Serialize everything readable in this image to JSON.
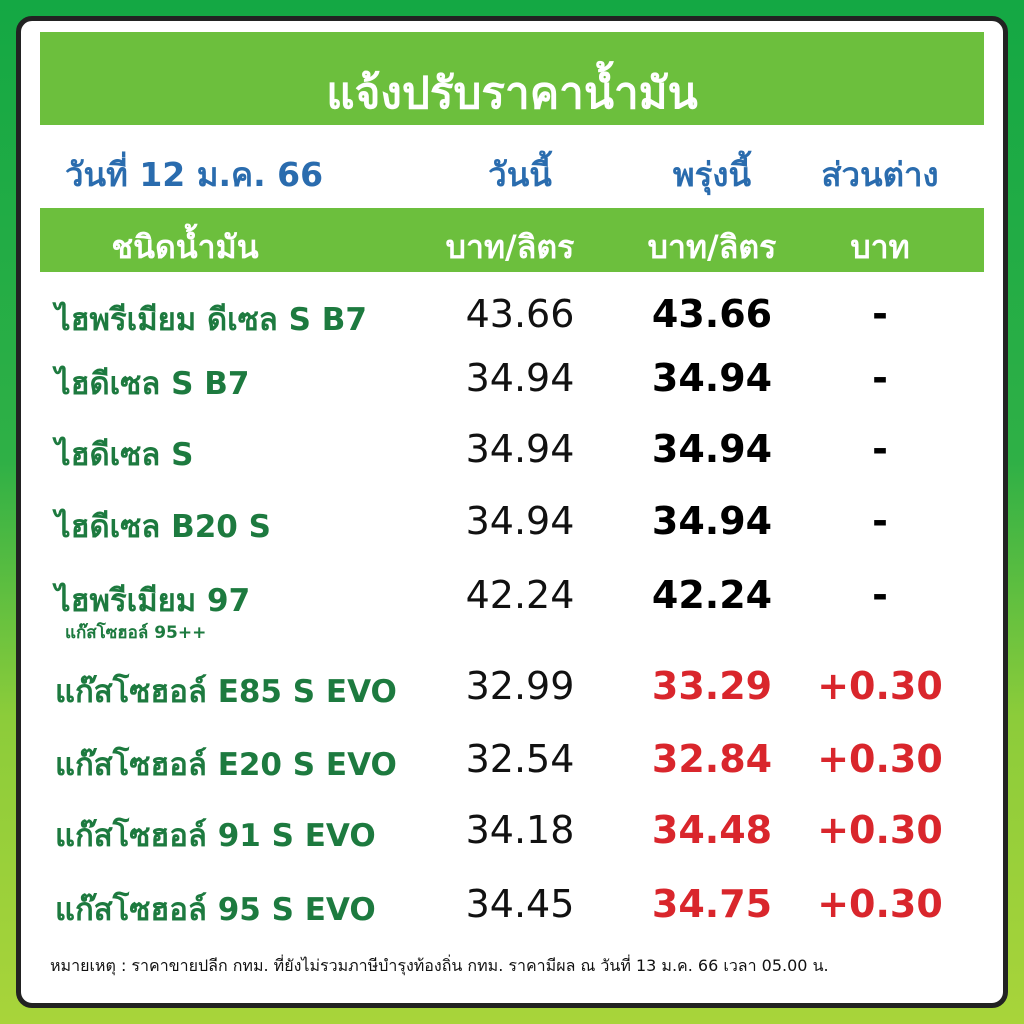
{
  "header": {
    "title": "แจ้งปรับราคาน้ำมัน"
  },
  "date_row": {
    "date": "วันที่ 12 ม.ค. 66",
    "today": "วันนี้",
    "tomorrow": "พรุ่งนี้",
    "change": "ส่วนต่าง"
  },
  "table": {
    "columns": [
      "ชนิดน้ำมัน",
      "บาท/ลิตร",
      "บาท/ลิตร",
      "บาท"
    ],
    "rows": [
      {
        "name": "ไฮพรีเมียม ดีเซล S B7",
        "today": "43.66",
        "tomorrow": "43.66",
        "change": "-"
      },
      {
        "name": "ไฮดีเซล S B7",
        "today": "34.94",
        "tomorrow": "34.94",
        "change": "-"
      },
      {
        "name": "ไฮดีเซล S",
        "today": "34.94",
        "tomorrow": "34.94",
        "change": "-"
      },
      {
        "name": "ไฮดีเซล B20 S",
        "today": "34.94",
        "tomorrow": "34.94",
        "change": "-"
      },
      {
        "name": "ไฮพรีเมียม 97",
        "sub": "แก๊สโซฮอล์ 95++",
        "today": "42.24",
        "tomorrow": "42.24",
        "change": "-"
      },
      {
        "name": "แก๊สโซฮอล์ E85 S EVO",
        "today": "32.99",
        "tomorrow": "33.29",
        "change": "+0.30"
      },
      {
        "name": "แก๊สโซฮอล์ E20 S EVO",
        "today": "32.54",
        "tomorrow": "32.84",
        "change": "+0.30"
      },
      {
        "name": "แก๊สโซฮอล์ 91 S EVO",
        "today": "34.18",
        "tomorrow": "34.48",
        "change": "+0.30"
      },
      {
        "name": "แก๊สโซฮอล์ 95 S EVO",
        "today": "34.45",
        "tomorrow": "34.75",
        "change": "+0.30"
      }
    ]
  },
  "footnote": "หมายเหตุ :  ราคาขายปลีก กทม. ที่ยังไม่รวมภาษีบำรุงท้องถิ่น กทม.  ราคามีผล ณ วันที่ 13 ม.ค. 66 เวลา 05.00 น."
}
